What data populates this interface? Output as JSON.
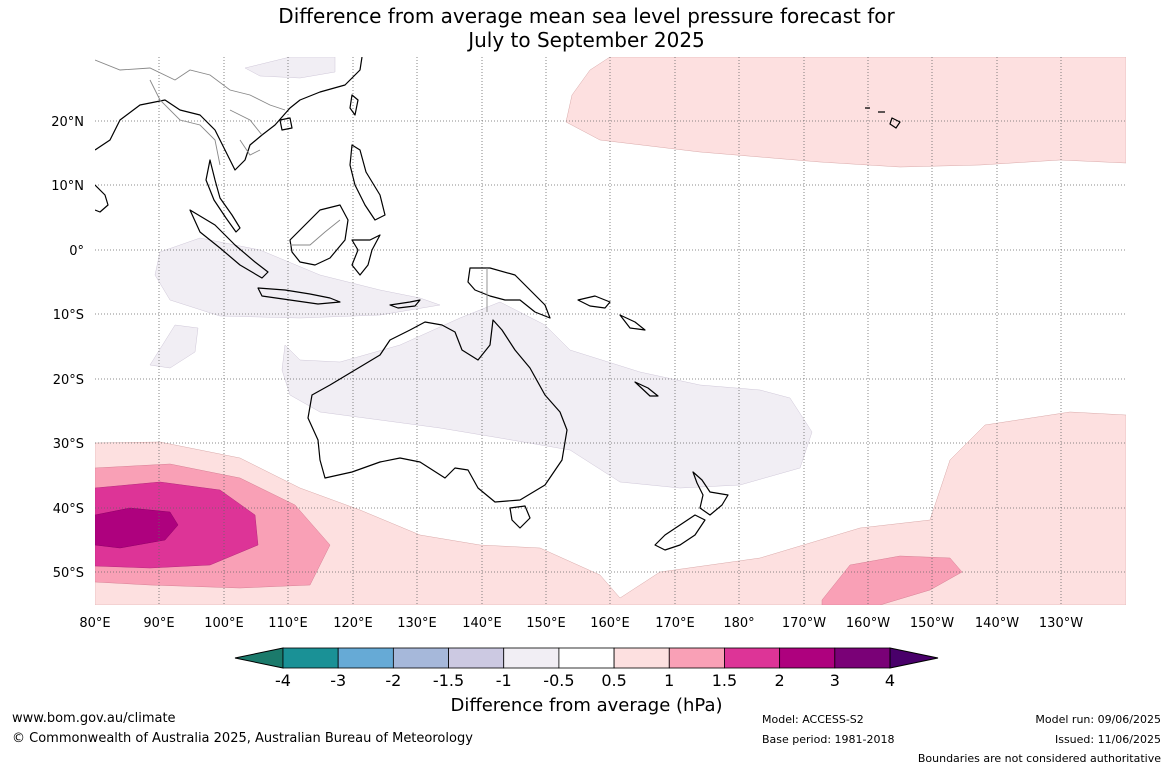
{
  "title": {
    "line1": "Difference from average mean sea level pressure forecast for",
    "line2": "July to September 2025"
  },
  "map": {
    "lat_ticks": [
      "20°N",
      "10°N",
      "0°",
      "10°S",
      "20°S",
      "30°S",
      "40°S",
      "50°S"
    ],
    "lon_ticks": [
      "80°E",
      "90°E",
      "100°E",
      "110°E",
      "120°E",
      "130°E",
      "140°E",
      "150°E",
      "160°E",
      "170°E",
      "180°",
      "170°W",
      "160°W",
      "150°W",
      "140°W",
      "130°W"
    ]
  },
  "colorbar": {
    "label": "Difference from average (hPa)",
    "ticks": [
      "-4",
      "-3",
      "-2",
      "-1.5",
      "-1",
      "-0.5",
      "0.5",
      "1",
      "1.5",
      "2",
      "3",
      "4"
    ],
    "colors": [
      "#1b7a6b",
      "#1a9196",
      "#66aad6",
      "#a6b8da",
      "#ccc9e2",
      "#f1eef4",
      "#ffffff",
      "#fde0e0",
      "#f9a0b6",
      "#dd3497",
      "#ae017e",
      "#7a0177",
      "#49006a"
    ]
  },
  "footer": {
    "website": "www.bom.gov.au/climate",
    "copyright": "© Commonwealth of Australia 2025, Australian Bureau of Meteorology",
    "model": "Model: ACCESS-S2",
    "base_period": "Base period: 1981-2018",
    "model_run": "Model run: 09/06/2025",
    "issued": "Issued: 11/06/2025",
    "disclaimer": "Boundaries are not considered authoritative"
  }
}
